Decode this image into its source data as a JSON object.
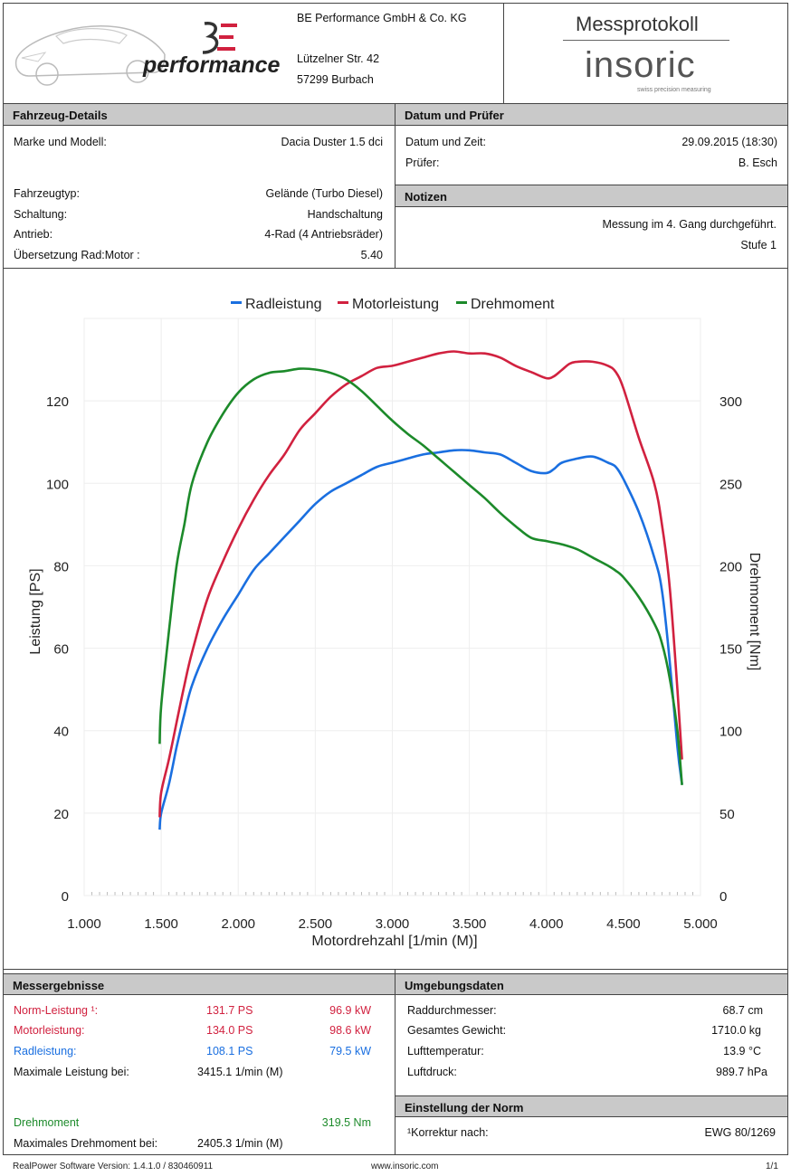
{
  "header": {
    "logo_text": "performance",
    "company": {
      "name": "BE Performance GmbH & Co. KG",
      "street": "Lützelner Str. 42",
      "city": "57299 Burbach"
    },
    "doc_title": "Messprotokoll",
    "brand": "insoric",
    "brand_tagline": "swiss precision measuring"
  },
  "vehicle": {
    "title": "Fahrzeug-Details",
    "model_label": "Marke und Modell:",
    "model_value": "Dacia Duster 1.5 dci",
    "type_label": "Fahrzeugtyp:",
    "type_value": "Gelände (Turbo Diesel)",
    "gear_label": "Schaltung:",
    "gear_value": "Handschaltung",
    "drive_label": "Antrieb:",
    "drive_value": "4-Rad (4 Antriebsräder)",
    "ratio_label": "Übersetzung Rad:Motor :",
    "ratio_value": "5.40"
  },
  "datum": {
    "title": "Datum und Prüfer",
    "date_label": "Datum und Zeit:",
    "date_value": "29.09.2015 (18:30)",
    "tester_label": "Prüfer:",
    "tester_value": "B. Esch"
  },
  "notes": {
    "title": "Notizen",
    "line1": "Messung im 4. Gang durchgeführt.",
    "line2": "Stufe 1"
  },
  "results": {
    "title": "Messergebnisse",
    "norm_label": "Norm-Leistung ¹:",
    "norm_ps": "131.7 PS",
    "norm_kw": "96.9 kW",
    "motor_label": "Motorleistung:",
    "motor_ps": "134.0 PS",
    "motor_kw": "98.6 kW",
    "rad_label": "Radleistung:",
    "rad_ps": "108.1 PS",
    "rad_kw": "79.5 kW",
    "maxp_label": "Maximale Leistung bei:",
    "maxp_value": "3415.1 1/min (M)",
    "torque_label": "Drehmoment",
    "torque_value": "319.5 Nm",
    "maxt_label": "Maximales Drehmoment bei:",
    "maxt_value": "2405.3 1/min (M)"
  },
  "env": {
    "title": "Umgebungsdaten",
    "wheel_label": "Raddurchmesser:",
    "wheel_value": "68.7 cm",
    "weight_label": "Gesamtes Gewicht:",
    "weight_value": "1710.0 kg",
    "temp_label": "Lufttemperatur:",
    "temp_value": "13.9 °C",
    "pressure_label": "Luftdruck:",
    "pressure_value": "989.7 hPa"
  },
  "norm": {
    "title": "Einstellung der Norm",
    "label": "¹Korrektur nach:",
    "value": "EWG 80/1269"
  },
  "footer": {
    "version": "RealPower Software Version: 1.4.1.0 / 830460911",
    "url": "www.insoric.com",
    "page": "1/1"
  },
  "colors": {
    "rad": "#1a6fe0",
    "motor": "#d1213f",
    "torque": "#1c8a2a",
    "section_bg": "#c9c9c9"
  },
  "chart_data": {
    "type": "line",
    "xlabel": "Motordrehzahl [1/min (M)]",
    "ylabel": "Leistung [PS]",
    "y2label": "Drehmoment [Nm]",
    "xlim": [
      1000,
      5000
    ],
    "ylim": [
      0,
      140
    ],
    "y2lim": [
      0,
      350
    ],
    "x_ticks": [
      "1.000",
      "1.500",
      "2.000",
      "2.500",
      "3.000",
      "3.500",
      "4.000",
      "4.500",
      "5.000"
    ],
    "y_ticks": [
      "0",
      "20",
      "40",
      "60",
      "80",
      "100",
      "120"
    ],
    "y2_ticks": [
      "0",
      "50",
      "100",
      "150",
      "200",
      "250",
      "300"
    ],
    "legend_position": "top",
    "grid": true,
    "series": [
      {
        "name": "Radleistung",
        "axis": "left",
        "color": "#1a6fe0",
        "x": [
          1490,
          1500,
          1550,
          1600,
          1650,
          1700,
          1800,
          1900,
          2000,
          2100,
          2200,
          2300,
          2400,
          2500,
          2600,
          2700,
          2800,
          2900,
          3000,
          3100,
          3200,
          3300,
          3400,
          3500,
          3600,
          3700,
          3800,
          3900,
          4000,
          4050,
          4100,
          4200,
          4300,
          4400,
          4450,
          4500,
          4600,
          4700,
          4750,
          4800,
          4850,
          4880
        ],
        "y": [
          16,
          20,
          27,
          36,
          44,
          51,
          60,
          67,
          73,
          79,
          83,
          87,
          91,
          95,
          98,
          100,
          102,
          104,
          105,
          106,
          107,
          107.5,
          108,
          108,
          107.5,
          107,
          105,
          103,
          102.5,
          103.5,
          105,
          106,
          106.5,
          105,
          104,
          101,
          93,
          82,
          74,
          57,
          36,
          27
        ]
      },
      {
        "name": "Motorleistung",
        "axis": "left",
        "color": "#d1213f",
        "x": [
          1490,
          1500,
          1550,
          1600,
          1650,
          1700,
          1800,
          1900,
          2000,
          2100,
          2200,
          2300,
          2400,
          2500,
          2600,
          2700,
          2800,
          2900,
          3000,
          3100,
          3200,
          3300,
          3400,
          3500,
          3600,
          3700,
          3800,
          3900,
          4000,
          4050,
          4100,
          4150,
          4200,
          4300,
          4400,
          4450,
          4500,
          4600,
          4700,
          4750,
          4800,
          4850,
          4880
        ],
        "y": [
          19,
          25,
          33,
          42,
          51,
          59,
          72,
          81,
          89,
          96,
          102,
          107,
          113,
          117,
          121,
          124,
          126,
          128,
          128.5,
          129.5,
          130.5,
          131.5,
          132,
          131.5,
          131.5,
          130.5,
          128.5,
          127,
          125.5,
          126,
          127.5,
          129,
          129.5,
          129.5,
          128.5,
          127,
          123,
          111,
          100,
          90,
          75,
          50,
          33
        ]
      },
      {
        "name": "Drehmoment",
        "axis": "right",
        "color": "#1c8a2a",
        "x": [
          1490,
          1500,
          1550,
          1600,
          1650,
          1700,
          1800,
          1900,
          2000,
          2100,
          2200,
          2300,
          2400,
          2500,
          2600,
          2700,
          2800,
          2900,
          3000,
          3100,
          3200,
          3300,
          3400,
          3500,
          3600,
          3700,
          3800,
          3900,
          4000,
          4050,
          4100,
          4200,
          4300,
          4400,
          4450,
          4500,
          4600,
          4700,
          4750,
          4800,
          4850,
          4880
        ],
        "y": [
          92,
          115,
          160,
          200,
          225,
          250,
          275,
          292,
          305,
          313,
          317,
          318,
          319.5,
          319,
          317,
          313,
          306,
          297,
          288,
          280,
          273,
          265,
          257,
          249,
          241,
          232,
          224,
          217,
          215,
          214,
          213,
          210,
          205,
          200,
          197,
          193,
          181,
          165,
          153,
          132,
          100,
          67
        ]
      }
    ]
  }
}
